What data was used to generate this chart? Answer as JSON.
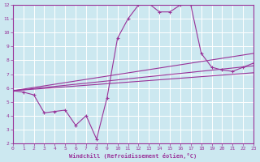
{
  "xlabel": "Windchill (Refroidissement éolien,°C)",
  "xlim": [
    0,
    23
  ],
  "ylim": [
    2,
    12
  ],
  "xticks": [
    0,
    1,
    2,
    3,
    4,
    5,
    6,
    7,
    8,
    9,
    10,
    11,
    12,
    13,
    14,
    15,
    16,
    17,
    18,
    19,
    20,
    21,
    22,
    23
  ],
  "yticks": [
    2,
    3,
    4,
    5,
    6,
    7,
    8,
    9,
    10,
    11,
    12
  ],
  "background_color": "#cce8f0",
  "grid_color": "#ffffff",
  "line_color": "#993399",
  "line1_x": [
    0,
    1,
    2,
    3,
    4,
    5,
    6,
    7,
    8,
    9,
    10,
    11,
    12,
    13,
    14,
    15,
    16,
    17,
    18,
    19,
    20,
    21,
    22,
    23
  ],
  "line1_y": [
    5.8,
    5.7,
    5.5,
    4.2,
    4.3,
    4.4,
    3.3,
    4.0,
    2.3,
    5.3,
    9.6,
    11.0,
    12.0,
    12.1,
    11.5,
    11.5,
    12.0,
    12.0,
    8.5,
    7.5,
    7.3,
    7.2,
    7.5,
    7.8
  ],
  "line2_x": [
    0,
    23
  ],
  "line2_y": [
    5.8,
    8.5
  ],
  "line3_x": [
    0,
    23
  ],
  "line3_y": [
    5.8,
    7.6
  ],
  "line4_x": [
    0,
    23
  ],
  "line4_y": [
    5.8,
    7.1
  ]
}
